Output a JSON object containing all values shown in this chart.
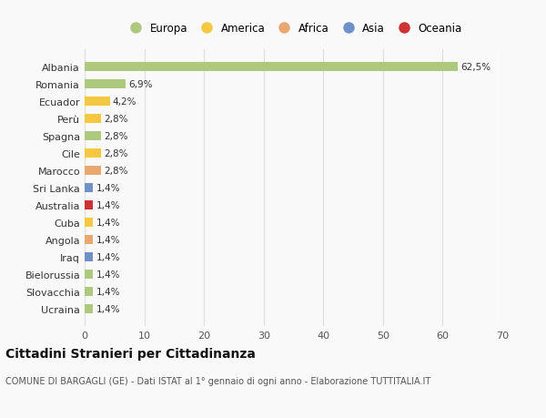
{
  "categories": [
    "Ucraina",
    "Slovacchia",
    "Bielorussia",
    "Iraq",
    "Angola",
    "Cuba",
    "Australia",
    "Sri Lanka",
    "Marocco",
    "Cile",
    "Spagna",
    "Perù",
    "Ecuador",
    "Romania",
    "Albania"
  ],
  "values": [
    1.4,
    1.4,
    1.4,
    1.4,
    1.4,
    1.4,
    1.4,
    1.4,
    2.8,
    2.8,
    2.8,
    2.8,
    4.2,
    6.9,
    62.5
  ],
  "bar_colors": [
    "#adc97e",
    "#adc97e",
    "#adc97e",
    "#7090c8",
    "#e8a870",
    "#f5c842",
    "#cc3333",
    "#7090c8",
    "#e8a870",
    "#f5c842",
    "#adc97e",
    "#f5c842",
    "#f5c842",
    "#adc97e",
    "#adc97e"
  ],
  "value_labels": [
    "1,4%",
    "1,4%",
    "1,4%",
    "1,4%",
    "1,4%",
    "1,4%",
    "1,4%",
    "1,4%",
    "2,8%",
    "2,8%",
    "2,8%",
    "2,8%",
    "4,2%",
    "6,9%",
    "62,5%"
  ],
  "legend_labels": [
    "Europa",
    "America",
    "Africa",
    "Asia",
    "Oceania"
  ],
  "legend_colors": [
    "#adc97e",
    "#f5c842",
    "#e8a870",
    "#7090c8",
    "#cc3333"
  ],
  "title": "Cittadini Stranieri per Cittadinanza",
  "subtitle": "COMUNE DI BARGAGLI (GE) - Dati ISTAT al 1° gennaio di ogni anno - Elaborazione TUTTITALIA.IT",
  "xlim": [
    0,
    70
  ],
  "xticks": [
    0,
    10,
    20,
    30,
    40,
    50,
    60,
    70
  ],
  "background_color": "#f9f9f9",
  "grid_color": "#dddddd",
  "bar_height": 0.55
}
